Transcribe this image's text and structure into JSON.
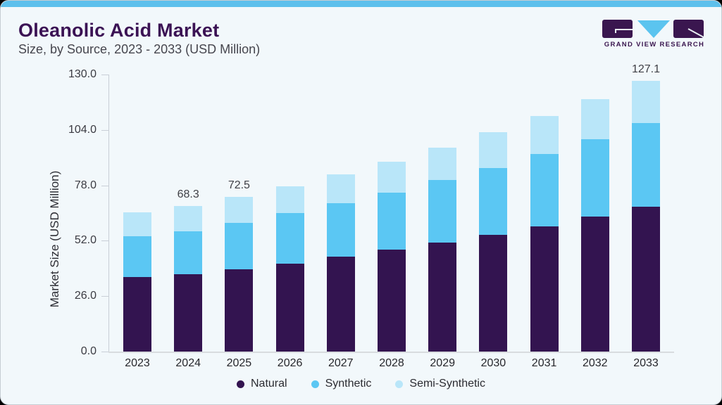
{
  "header": {
    "title": "Oleanolic Acid Market",
    "subtitle": "Size, by Source, 2023 - 2033 (USD Million)"
  },
  "logo": {
    "text": "GRAND VIEW RESEARCH",
    "purple": "#3a164f",
    "blue": "#5bc4ef"
  },
  "colors": {
    "card_background": "#f2f8fb",
    "top_strip": "#5dc0ec",
    "natural": "#331450",
    "synthetic": "#5bc7f3",
    "semi_synthetic": "#b9e6f9",
    "axis_line": "#c9cfd7"
  },
  "chart_data": {
    "type": "bar",
    "stacked": true,
    "title": "Oleanolic Acid Market Size, by Source, 2023 - 2033 (USD Million)",
    "xlabel": "",
    "ylabel": "Market Size (USD Million)",
    "categories": [
      "2023",
      "2024",
      "2025",
      "2026",
      "2027",
      "2028",
      "2029",
      "2030",
      "2031",
      "2032",
      "2033"
    ],
    "series": [
      {
        "name": "Natural",
        "color": "#331450",
        "values": [
          35.0,
          36.3,
          38.6,
          41.4,
          44.5,
          47.7,
          51.3,
          54.9,
          58.9,
          63.3,
          68.1
        ]
      },
      {
        "name": "Synthetic",
        "color": "#5bc7f3",
        "values": [
          19.0,
          20.2,
          21.8,
          23.5,
          25.1,
          26.9,
          29.1,
          31.3,
          33.8,
          36.4,
          39.0
        ]
      },
      {
        "name": "Semi-Synthetic",
        "color": "#b9e6f9",
        "values": [
          11.3,
          11.8,
          12.1,
          12.7,
          13.6,
          14.6,
          15.4,
          16.7,
          17.8,
          18.9,
          20.0
        ]
      }
    ],
    "totals": [
      65.3,
      68.3,
      72.5,
      77.6,
      83.2,
      89.2,
      95.8,
      102.9,
      110.5,
      118.6,
      127.1
    ],
    "annotations": [
      {
        "category": "2024",
        "text": "68.3"
      },
      {
        "category": "2025",
        "text": "72.5"
      },
      {
        "category": "2033",
        "text": "127.1"
      }
    ],
    "yticks": [
      "0.0",
      "26.0",
      "52.0",
      "78.0",
      "104.0",
      "130.0"
    ],
    "ylim": [
      0,
      130
    ],
    "grid": false,
    "legend_position": "bottom"
  }
}
